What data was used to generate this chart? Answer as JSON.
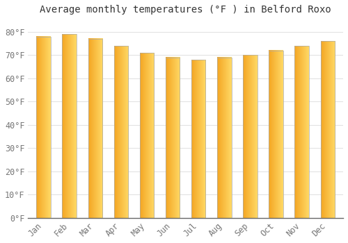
{
  "months": [
    "Jan",
    "Feb",
    "Mar",
    "Apr",
    "May",
    "Jun",
    "Jul",
    "Aug",
    "Sep",
    "Oct",
    "Nov",
    "Dec"
  ],
  "values": [
    78,
    79,
    77,
    74,
    71,
    69,
    68,
    69,
    70,
    72,
    74,
    76
  ],
  "title": "Average monthly temperatures (°F ) in Belford Roxo",
  "bar_color_left": "#F5A623",
  "bar_color_right": "#FFD966",
  "background_color": "#FFFFFF",
  "grid_color": "#E0E0E0",
  "ylim": [
    0,
    85
  ],
  "yticks": [
    0,
    10,
    20,
    30,
    40,
    50,
    60,
    70,
    80
  ],
  "ytick_labels": [
    "0°F",
    "10°F",
    "20°F",
    "30°F",
    "40°F",
    "50°F",
    "60°F",
    "70°F",
    "80°F"
  ],
  "title_fontsize": 10,
  "tick_fontsize": 8.5,
  "bar_width": 0.55
}
